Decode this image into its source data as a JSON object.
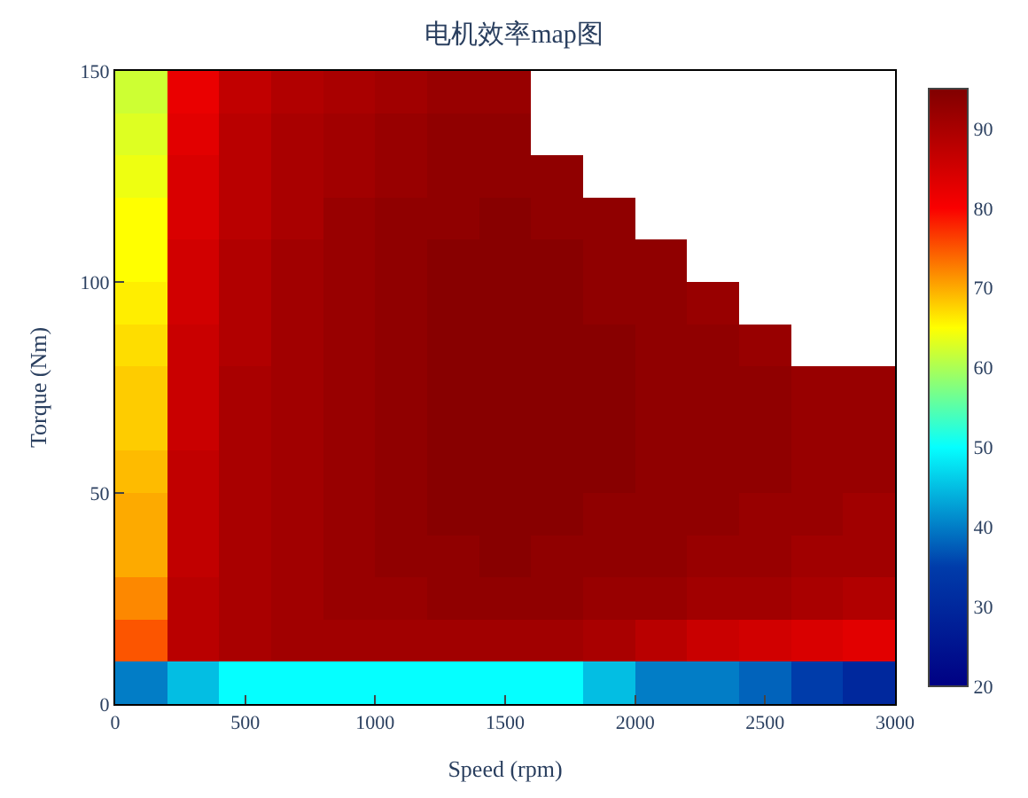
{
  "chart_data": {
    "type": "heatmap",
    "title": "电机效率map图",
    "xlabel": "Speed (rpm)",
    "ylabel": "Torque (Nm)",
    "x": [
      100,
      300,
      500,
      700,
      900,
      1100,
      1300,
      1500,
      1700,
      1900,
      2100,
      2300,
      2500,
      2700,
      2900
    ],
    "cells": [
      [
        62,
        82,
        87,
        89,
        90,
        91,
        92,
        92,
        null,
        null,
        null,
        null,
        null,
        null,
        null
      ],
      [
        63,
        83,
        88,
        90,
        91,
        92,
        93,
        93,
        null,
        null,
        null,
        null,
        null,
        null,
        null
      ],
      [
        64,
        84,
        88,
        90,
        91,
        92,
        93,
        93,
        93,
        null,
        null,
        null,
        null,
        null,
        null
      ],
      [
        65,
        84,
        88,
        90,
        92,
        93,
        93,
        94,
        93,
        93,
        null,
        null,
        null,
        null,
        null
      ],
      [
        65,
        85,
        89,
        91,
        92,
        93,
        94,
        94,
        94,
        93,
        93,
        null,
        null,
        null,
        null
      ],
      [
        66,
        85,
        89,
        91,
        92,
        93,
        94,
        94,
        94,
        93,
        93,
        92,
        null,
        null,
        null
      ],
      [
        67,
        86,
        89,
        91,
        92,
        93,
        94,
        94,
        94,
        94,
        93,
        93,
        92,
        null,
        null
      ],
      [
        68,
        86,
        90,
        91,
        92,
        93,
        94,
        94,
        94,
        94,
        93,
        93,
        93,
        92,
        92
      ],
      [
        68,
        86,
        90,
        91,
        92,
        93,
        94,
        94,
        94,
        94,
        93,
        93,
        93,
        92,
        92
      ],
      [
        69,
        87,
        90,
        91,
        92,
        93,
        94,
        94,
        94,
        94,
        93,
        93,
        93,
        92,
        92
      ],
      [
        70,
        87,
        90,
        91,
        92,
        93,
        94,
        94,
        94,
        93,
        93,
        93,
        92,
        92,
        91
      ],
      [
        70,
        87,
        90,
        91,
        92,
        93,
        93,
        94,
        93,
        93,
        93,
        92,
        92,
        91,
        91
      ],
      [
        72,
        88,
        90,
        91,
        92,
        92,
        93,
        93,
        93,
        92,
        92,
        91,
        91,
        90,
        89
      ],
      [
        75,
        88,
        90,
        91,
        91,
        91,
        91,
        91,
        91,
        90,
        88,
        86,
        85,
        84,
        83
      ],
      [
        40,
        45,
        50,
        50,
        50,
        50,
        50,
        50,
        50,
        45,
        40,
        40,
        38,
        35,
        30
      ]
    ],
    "xlim": [
      0,
      3000
    ],
    "xticks": [
      0,
      500,
      1000,
      1500,
      2000,
      2500,
      3000
    ],
    "ylim": [
      0,
      150
    ],
    "yticks": [
      0,
      50,
      100,
      150
    ],
    "clim": [
      20,
      95
    ],
    "cticks": [
      20,
      30,
      40,
      50,
      60,
      70,
      80,
      90
    ]
  }
}
